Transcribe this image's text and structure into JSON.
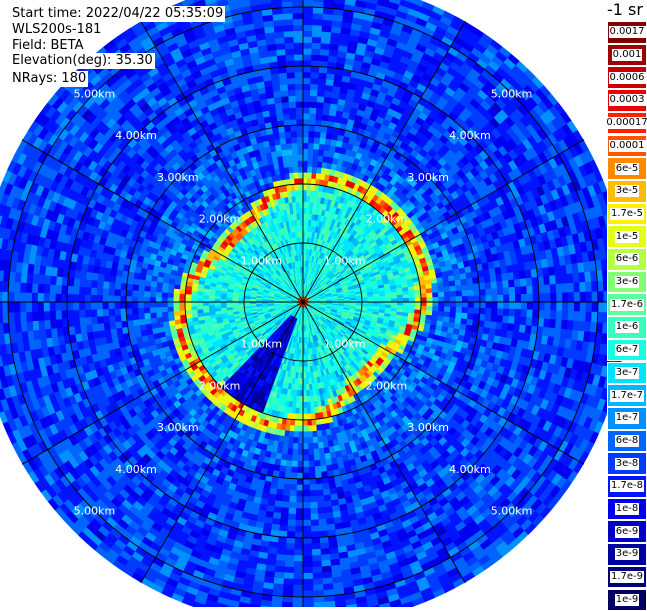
{
  "info": {
    "start_time": "Start time: 2022/04/22 05:35:09",
    "device": "WLS200s-181",
    "field": "Field: BETA",
    "elevation": "Elevation(deg): 35.30",
    "nrays": "NRays: 180"
  },
  "unit_label": "-1 sr",
  "chart_data": {
    "type": "heatmap",
    "projection": "polar (PPI scan)",
    "field": "BETA",
    "nrays": 180,
    "elevation_deg": 35.3,
    "range_rings_km": [
      1,
      2,
      3,
      4,
      5
    ],
    "ring_labels": [
      "1.00km",
      "2.00km",
      "3.00km",
      "4.00km",
      "5.00km"
    ],
    "max_range_km": 5.5,
    "azimuth_spokes_deg": [
      0,
      30,
      60,
      90,
      120,
      150,
      180,
      210,
      240,
      270,
      300,
      330
    ],
    "color_levels": [
      {
        "label": "0.0017",
        "color": "#800000"
      },
      {
        "label": "0.001",
        "color": "#9f0000"
      },
      {
        "label": "0.0006",
        "color": "#c80000"
      },
      {
        "label": "0.0003",
        "color": "#ee0000"
      },
      {
        "label": "0.00017",
        "color": "#ff2000"
      },
      {
        "label": "0.0001",
        "color": "#ff5500"
      },
      {
        "label": "6e-5",
        "color": "#ff8a00"
      },
      {
        "label": "3e-5",
        "color": "#ffbf00"
      },
      {
        "label": "1.7e-5",
        "color": "#ffef00"
      },
      {
        "label": "1e-5",
        "color": "#e2ff15"
      },
      {
        "label": "6e-6",
        "color": "#b5ff42"
      },
      {
        "label": "3e-6",
        "color": "#84ff73"
      },
      {
        "label": "1.7e-6",
        "color": "#5bff9c"
      },
      {
        "label": "1e-6",
        "color": "#38ffc0"
      },
      {
        "label": "6e-7",
        "color": "#14ffe4"
      },
      {
        "label": "3e-7",
        "color": "#00e4ff"
      },
      {
        "label": "1.7e-7",
        "color": "#00b8ff"
      },
      {
        "label": "1e-7",
        "color": "#0090ff"
      },
      {
        "label": "6e-8",
        "color": "#0064ff"
      },
      {
        "label": "3e-8",
        "color": "#003cff"
      },
      {
        "label": "1.7e-8",
        "color": "#0014ff"
      },
      {
        "label": "1e-8",
        "color": "#0000f0"
      },
      {
        "label": "6e-9",
        "color": "#0000c8"
      },
      {
        "label": "3e-9",
        "color": "#0000a0"
      },
      {
        "label": "1.7e-9",
        "color": "#00007a"
      },
      {
        "label": "1e-9",
        "color": "#000064"
      }
    ],
    "annotations": [
      "High-backscatter (yellow-red) ring near 2 km range; low-backscatter (dark blue) sector toward south-west; blue background beyond 2.5 km"
    ]
  }
}
